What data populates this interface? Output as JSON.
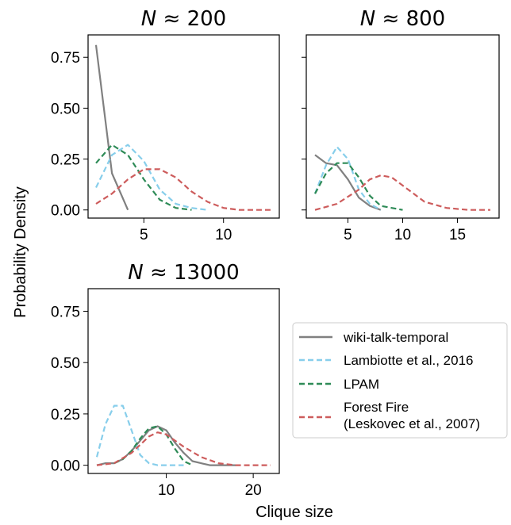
{
  "figure": {
    "ylabel": "Probability Density",
    "xlabel": "Clique size"
  },
  "legend": {
    "placement": "bottom-right",
    "entries": [
      {
        "lines": [
          "wiki-talk-temporal"
        ],
        "color": "#808080",
        "dashed": false
      },
      {
        "lines": [
          "Lambiotte et al., 2016"
        ],
        "color": "#87CEEB",
        "dashed": true
      },
      {
        "lines": [
          "LPAM"
        ],
        "color": "#2E8B57",
        "dashed": true
      },
      {
        "lines": [
          "Forest Fire",
          "(Leskovec et al., 2007)"
        ],
        "color": "#CD5C5C",
        "dashed": true
      }
    ]
  },
  "chart_data": [
    {
      "type": "line",
      "title": "N ≈ 200",
      "title_parts": {
        "var": "N",
        "rest": " ≈ 200"
      },
      "xlim": [
        1.5,
        13.5
      ],
      "ylim": [
        -0.04,
        0.86
      ],
      "xticks": [
        5,
        10
      ],
      "yticks": [
        0.0,
        0.25,
        0.5,
        0.75
      ],
      "ytick_labels": [
        "0.00",
        "0.25",
        "0.50",
        "0.75"
      ],
      "series": [
        {
          "name": "wiki-talk-temporal",
          "color": "#808080",
          "dashed": false,
          "x": [
            2,
            3,
            4
          ],
          "y": [
            0.81,
            0.18,
            0.0
          ]
        },
        {
          "name": "Lambiotte et al., 2016",
          "color": "#87CEEB",
          "dashed": true,
          "x": [
            2,
            3,
            4,
            5,
            6,
            7,
            8,
            9
          ],
          "y": [
            0.11,
            0.27,
            0.32,
            0.24,
            0.1,
            0.03,
            0.01,
            0.0
          ]
        },
        {
          "name": "LPAM",
          "color": "#2E8B57",
          "dashed": true,
          "x": [
            2,
            3,
            4,
            5,
            6,
            7,
            8
          ],
          "y": [
            0.23,
            0.32,
            0.27,
            0.15,
            0.05,
            0.01,
            0.0
          ]
        },
        {
          "name": "Forest Fire (Leskovec et al., 2007)",
          "color": "#CD5C5C",
          "dashed": true,
          "x": [
            2,
            3,
            4,
            5,
            6,
            7,
            8,
            9,
            10,
            11,
            12,
            13
          ],
          "y": [
            0.03,
            0.08,
            0.15,
            0.2,
            0.2,
            0.16,
            0.09,
            0.04,
            0.01,
            0.0,
            0.0,
            0.0
          ]
        }
      ]
    },
    {
      "type": "line",
      "title": "N ≈ 800",
      "title_parts": {
        "var": "N",
        "rest": " ≈ 800"
      },
      "xlim": [
        1.2,
        18.8
      ],
      "ylim": [
        -0.04,
        0.86
      ],
      "xticks": [
        5,
        10,
        15
      ],
      "yticks": [
        0.0,
        0.25,
        0.5,
        0.75
      ],
      "ytick_labels": [],
      "series": [
        {
          "name": "wiki-talk-temporal",
          "color": "#808080",
          "dashed": false,
          "x": [
            2,
            3,
            4,
            5,
            6,
            7,
            8
          ],
          "y": [
            0.27,
            0.23,
            0.22,
            0.15,
            0.06,
            0.02,
            0.0
          ]
        },
        {
          "name": "Lambiotte et al., 2016",
          "color": "#87CEEB",
          "dashed": true,
          "x": [
            2,
            3,
            4,
            5,
            6,
            7,
            8
          ],
          "y": [
            0.08,
            0.22,
            0.31,
            0.25,
            0.1,
            0.03,
            0.0
          ]
        },
        {
          "name": "LPAM",
          "color": "#2E8B57",
          "dashed": true,
          "x": [
            2,
            3,
            4,
            5,
            6,
            7,
            8,
            9,
            10
          ],
          "y": [
            0.08,
            0.18,
            0.23,
            0.23,
            0.16,
            0.07,
            0.02,
            0.01,
            0.0
          ]
        },
        {
          "name": "Forest Fire (Leskovec et al., 2007)",
          "color": "#CD5C5C",
          "dashed": true,
          "x": [
            2,
            4,
            6,
            7,
            8,
            9,
            10,
            12,
            14,
            16,
            18
          ],
          "y": [
            0.0,
            0.03,
            0.1,
            0.15,
            0.17,
            0.16,
            0.12,
            0.04,
            0.01,
            0.0,
            0.0
          ]
        }
      ]
    },
    {
      "type": "line",
      "title": "N ≈ 13000",
      "title_parts": {
        "var": "N",
        "rest": " ≈ 13000"
      },
      "xlim": [
        1.0,
        23.0
      ],
      "ylim": [
        -0.04,
        0.86
      ],
      "xticks": [
        10,
        20
      ],
      "yticks": [
        0.0,
        0.25,
        0.5,
        0.75
      ],
      "ytick_labels": [
        "0.00",
        "0.25",
        "0.50",
        "0.75"
      ],
      "series": [
        {
          "name": "wiki-talk-temporal",
          "color": "#808080",
          "dashed": false,
          "x": [
            2,
            3,
            4,
            5,
            6,
            7,
            8,
            9,
            10,
            11,
            12,
            13,
            14,
            15,
            16,
            17,
            18
          ],
          "y": [
            0.0,
            0.01,
            0.01,
            0.03,
            0.07,
            0.12,
            0.17,
            0.19,
            0.17,
            0.11,
            0.06,
            0.02,
            0.01,
            0.0,
            0.0,
            0.0,
            0.0
          ]
        },
        {
          "name": "Lambiotte et al., 2016",
          "color": "#87CEEB",
          "dashed": true,
          "x": [
            2,
            3,
            4,
            5,
            6,
            7,
            8,
            9,
            10,
            11,
            12
          ],
          "y": [
            0.04,
            0.2,
            0.29,
            0.29,
            0.17,
            0.05,
            0.01,
            0.0,
            0.0,
            0.0,
            0.0
          ]
        },
        {
          "name": "LPAM",
          "color": "#2E8B57",
          "dashed": true,
          "x": [
            4,
            5,
            6,
            7,
            8,
            9,
            10,
            11,
            12,
            13
          ],
          "y": [
            0.01,
            0.03,
            0.07,
            0.13,
            0.18,
            0.19,
            0.15,
            0.08,
            0.02,
            0.0
          ]
        },
        {
          "name": "Forest Fire (Leskovec et al., 2007)",
          "color": "#CD5C5C",
          "dashed": true,
          "x": [
            2,
            4,
            6,
            8,
            9,
            10,
            12,
            14,
            16,
            18,
            20,
            22
          ],
          "y": [
            0.0,
            0.01,
            0.06,
            0.14,
            0.16,
            0.15,
            0.09,
            0.04,
            0.01,
            0.0,
            0.0,
            0.0
          ]
        }
      ]
    }
  ]
}
